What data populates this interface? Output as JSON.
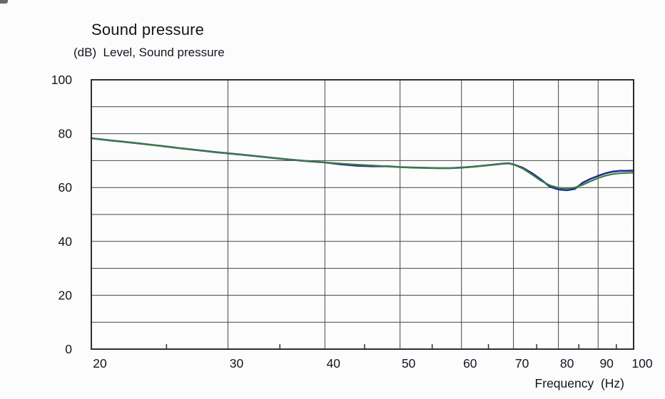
{
  "colors": {
    "background": "#fcfcfd",
    "grid": "#454545",
    "border": "#2e2e2e",
    "text": "#14141f",
    "series_blue": "#20308f",
    "series_green": "#3e7c42"
  },
  "chart_data": {
    "type": "line",
    "title": "Sound pressure",
    "ylabel": "(dB)  Level, Sound pressure",
    "xlabel": "Frequency  (Hz)",
    "x_scale": "log",
    "xlim": [
      20,
      100
    ],
    "ylim": [
      0,
      100
    ],
    "x_ticks": [
      20,
      30,
      40,
      50,
      60,
      70,
      80,
      90,
      100
    ],
    "x_minor_ticks": [
      25,
      35,
      45,
      55,
      65,
      75,
      85,
      95
    ],
    "y_tick_labels": [
      100,
      80,
      60,
      40,
      20,
      0
    ],
    "y_grid_step": 10,
    "grid": true,
    "legend_position": "none",
    "x": [
      20,
      21,
      22,
      23,
      24,
      25,
      26,
      27,
      28,
      29,
      30,
      32,
      34,
      36,
      38,
      40,
      42,
      44,
      46,
      48,
      50,
      52,
      54,
      56,
      58,
      60,
      62,
      64,
      66,
      68,
      69,
      70,
      72,
      74,
      76,
      78,
      80,
      82,
      84,
      86,
      88,
      90,
      92,
      94,
      96,
      98,
      100
    ],
    "series": [
      {
        "name": "sound-pressure-blue",
        "color": "#20308f",
        "stroke_width": 2.6,
        "values": [
          78.3,
          77.6,
          77.0,
          76.4,
          75.8,
          75.2,
          74.6,
          74.1,
          73.6,
          73.1,
          72.7,
          71.9,
          71.1,
          70.4,
          69.8,
          69.3,
          68.6,
          68.1,
          67.9,
          67.9,
          67.6,
          67.4,
          67.3,
          67.2,
          67.2,
          67.4,
          67.7,
          68.1,
          68.5,
          68.9,
          69.0,
          68.6,
          67.3,
          65.3,
          62.9,
          60.3,
          59.3,
          59.0,
          59.5,
          61.8,
          63.2,
          64.3,
          65.3,
          65.9,
          66.2,
          66.2,
          66.3
        ]
      },
      {
        "name": "sound-pressure-green",
        "color": "#3e7c42",
        "stroke_width": 2.2,
        "values": [
          78.3,
          77.6,
          77.0,
          76.4,
          75.8,
          75.2,
          74.6,
          74.1,
          73.6,
          73.1,
          72.7,
          71.9,
          71.1,
          70.4,
          69.8,
          69.3,
          68.9,
          68.5,
          68.2,
          67.9,
          67.6,
          67.4,
          67.3,
          67.2,
          67.2,
          67.4,
          67.7,
          68.1,
          68.5,
          68.9,
          69.0,
          68.6,
          67.0,
          64.8,
          62.5,
          60.8,
          59.9,
          59.7,
          60.0,
          61.0,
          62.3,
          63.5,
          64.4,
          65.0,
          65.3,
          65.4,
          65.5
        ]
      }
    ]
  }
}
